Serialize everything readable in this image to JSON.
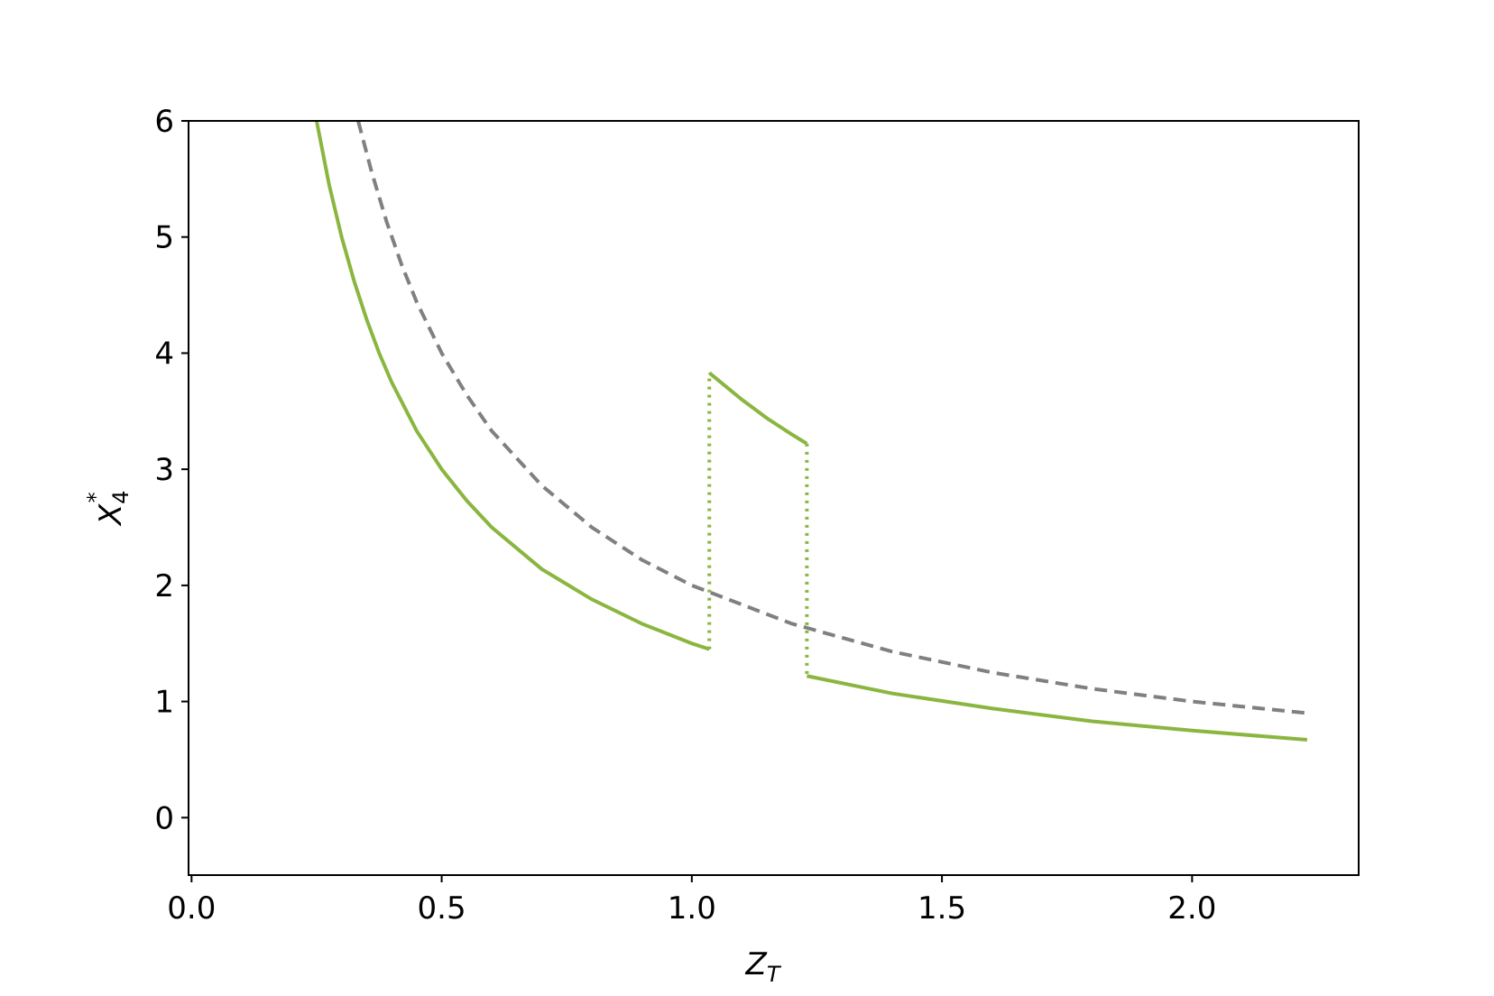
{
  "chart_data": {
    "type": "line",
    "xlabel": [
      "Z",
      "T"
    ],
    "ylabel": [
      "X",
      "4",
      "*"
    ],
    "xlim": [
      -0.006,
      2.333
    ],
    "ylim": [
      -0.495,
      6
    ],
    "xticks": [
      {
        "value": 0,
        "label": "0.0"
      },
      0.5,
      {
        "value": 1,
        "label": "1.0"
      },
      1.5,
      {
        "value": 2,
        "label": "2.0"
      }
    ],
    "yticks": [
      0,
      1,
      2,
      3,
      4,
      5,
      6
    ],
    "grid": false,
    "series": [
      {
        "color": "#8ab640",
        "style": "solid",
        "x": [
          0.25,
          0.275,
          0.3,
          0.325,
          0.35,
          0.375,
          0.4,
          0.45,
          0.5,
          0.55,
          0.6,
          0.7,
          0.8,
          0.9,
          1.0,
          1.035,
          null,
          1.035,
          1.1,
          1.15,
          1.2,
          1.23,
          null,
          1.23,
          1.4,
          1.6,
          1.8,
          2.0,
          2.23
        ],
        "values": [
          6,
          5.45,
          5,
          4.62,
          4.29,
          4,
          3.75,
          3.33,
          3,
          2.73,
          2.5,
          2.14,
          1.88,
          1.67,
          1.5,
          1.45,
          null,
          3.83,
          3.6,
          3.44,
          3.3,
          3.22,
          null,
          1.22,
          1.07,
          0.94,
          0.83,
          0.75,
          0.67
        ]
      },
      {
        "color": "#8ab640",
        "style": "dotted",
        "x": [
          1.035,
          1.035
        ],
        "values": [
          1.45,
          3.83
        ]
      },
      {
        "color": "#8ab640",
        "style": "dotted",
        "x": [
          1.23,
          1.23
        ],
        "values": [
          3.22,
          1.22
        ]
      },
      {
        "color": "#808080",
        "style": "dashed",
        "x": [
          0.333,
          0.36,
          0.39,
          0.42,
          0.45,
          0.5,
          0.55,
          0.6,
          0.7,
          0.8,
          0.9,
          1.0,
          1.2,
          1.4,
          1.6,
          1.8,
          2.0,
          2.23
        ],
        "values": [
          6,
          5.56,
          5.13,
          4.76,
          4.44,
          4,
          3.64,
          3.33,
          2.86,
          2.5,
          2.22,
          2,
          1.67,
          1.43,
          1.25,
          1.11,
          1,
          0.9
        ]
      }
    ]
  }
}
